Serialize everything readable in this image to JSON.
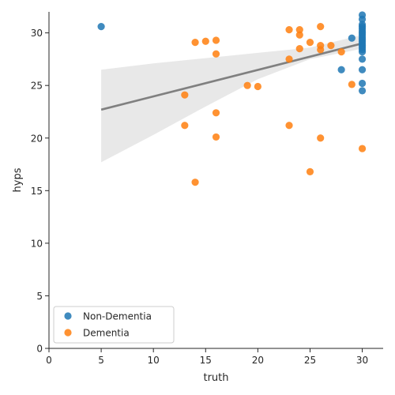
{
  "chart_data": {
    "type": "scatter",
    "xlabel": "truth",
    "ylabel": "hyps",
    "xlim": [
      0,
      32
    ],
    "ylim": [
      0,
      32
    ],
    "xticks": [
      0,
      5,
      10,
      15,
      20,
      25,
      30
    ],
    "yticks": [
      0,
      5,
      10,
      15,
      20,
      25,
      30
    ],
    "legend_position": "lower-left",
    "series": [
      {
        "name": "Non-Dementia",
        "color": "#1f77b4",
        "points": [
          [
            5,
            30.6
          ],
          [
            29,
            29.5
          ],
          [
            28,
            26.5
          ],
          [
            30,
            31.7
          ],
          [
            30,
            31.3
          ],
          [
            30,
            30.8
          ],
          [
            30,
            30.6
          ],
          [
            30,
            30.4
          ],
          [
            30,
            30.2
          ],
          [
            30,
            30.0
          ],
          [
            30,
            29.8
          ],
          [
            30,
            29.6
          ],
          [
            30,
            29.4
          ],
          [
            30,
            29.2
          ],
          [
            30,
            29.0
          ],
          [
            30,
            28.8
          ],
          [
            30,
            28.6
          ],
          [
            30,
            28.4
          ],
          [
            30,
            28.2
          ],
          [
            30,
            27.5
          ],
          [
            30,
            26.5
          ],
          [
            30,
            25.2
          ],
          [
            30,
            24.5
          ]
        ]
      },
      {
        "name": "Dementia",
        "color": "#ff7f0e",
        "points": [
          [
            14,
            29.1
          ],
          [
            15,
            29.2
          ],
          [
            16,
            29.3
          ],
          [
            16,
            28.0
          ],
          [
            13,
            24.1
          ],
          [
            13,
            21.2
          ],
          [
            14,
            15.8
          ],
          [
            16,
            22.4
          ],
          [
            16,
            20.1
          ],
          [
            19,
            25.0
          ],
          [
            20,
            24.9
          ],
          [
            23,
            30.3
          ],
          [
            23,
            27.5
          ],
          [
            23,
            21.2
          ],
          [
            24,
            30.3
          ],
          [
            24,
            29.8
          ],
          [
            24,
            28.5
          ],
          [
            25,
            29.1
          ],
          [
            25,
            16.8
          ],
          [
            26,
            30.6
          ],
          [
            26,
            28.8
          ],
          [
            26,
            28.4
          ],
          [
            26,
            20.0
          ],
          [
            27,
            28.8
          ],
          [
            28,
            28.2
          ],
          [
            29,
            25.1
          ],
          [
            30,
            19.0
          ]
        ]
      }
    ],
    "regression": {
      "color": "#808080",
      "x_range": [
        5,
        30
      ],
      "line": [
        [
          5,
          22.7
        ],
        [
          30,
          29.0
        ]
      ],
      "ci_upper": [
        [
          5,
          26.5
        ],
        [
          10,
          27.1
        ],
        [
          15,
          27.6
        ],
        [
          20,
          28.1
        ],
        [
          25,
          28.6
        ],
        [
          30,
          29.8
        ]
      ],
      "ci_lower": [
        [
          5,
          17.7
        ],
        [
          10,
          20.3
        ],
        [
          15,
          23.0
        ],
        [
          20,
          25.6
        ],
        [
          25,
          27.5
        ],
        [
          30,
          28.5
        ]
      ]
    }
  }
}
